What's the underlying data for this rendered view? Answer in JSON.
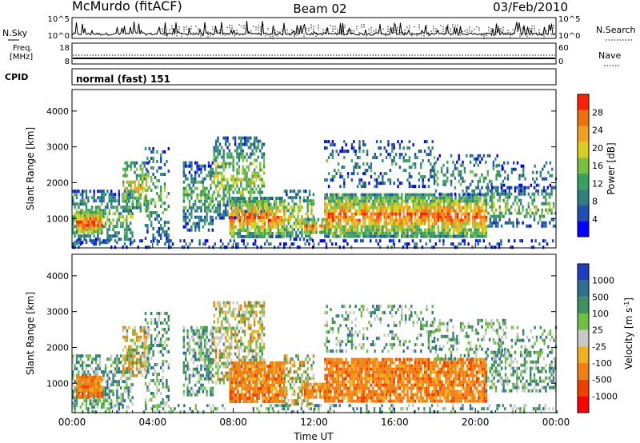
{
  "header": {
    "station": "McMurdo (fitACF)",
    "beam": "Beam 02",
    "date": "03/Feb/2010"
  },
  "noise_panel": {
    "left_label": "N.Sky",
    "right_label": "N.Search",
    "left_ticks": [
      "10^5",
      "10^0"
    ],
    "right_ticks": [
      "10^5",
      "10^0"
    ]
  },
  "freq_panel": {
    "left_label_1": "Freq.",
    "left_label_2": "[MHz]",
    "right_label": "Nave",
    "left_ticks": [
      "18",
      "8"
    ],
    "right_ticks": [
      "60",
      "0"
    ]
  },
  "cpid": {
    "label": "CPID",
    "value": "normal (fast) 151"
  },
  "chart_data": [
    {
      "type": "heatmap",
      "name": "power",
      "ylabel": "Slant Range [km]",
      "xlabel": "",
      "ylim": [
        180,
        4600
      ],
      "y_ticks": [
        "1000",
        "2000",
        "3000",
        "4000"
      ],
      "y_tick_values": [
        1000,
        2000,
        3000,
        4000
      ],
      "colorbar": {
        "label": "Power [dB]",
        "range": [
          0,
          32
        ],
        "tick_labels": [
          "4",
          "8",
          "12",
          "16",
          "20",
          "24",
          "28"
        ],
        "tick_values": [
          4,
          8,
          12,
          16,
          20,
          24,
          28
        ],
        "colors": [
          "#0000ff",
          "#1f4fb0",
          "#2f7f7f",
          "#3aa060",
          "#77c040",
          "#d8d020",
          "#f0a020",
          "#f07010",
          "#ff2000"
        ]
      }
    },
    {
      "type": "heatmap",
      "name": "velocity",
      "ylabel": "Slant Range [km]",
      "xlabel": "Time UT",
      "ylim": [
        180,
        4600
      ],
      "y_ticks": [
        "1000",
        "2000",
        "3000",
        "4000"
      ],
      "y_tick_values": [
        1000,
        2000,
        3000,
        4000
      ],
      "x_ticks": [
        "00:00",
        "04:00",
        "08:00",
        "12:00",
        "16:00",
        "20:00",
        "00:00"
      ],
      "x_tick_hours": [
        0,
        4,
        8,
        12,
        16,
        20,
        24
      ],
      "colorbar": {
        "label": "Velocity [m s",
        "label_sup": "-1",
        "label_end": "]",
        "tick_labels": [
          "1000",
          "500",
          "100",
          "25",
          "-25",
          "-100",
          "-500",
          "-1000"
        ],
        "colors": [
          "#1f3fc0",
          "#2f6f8f",
          "#3f8f5f",
          "#6fc040",
          "#c8c8c8",
          "#f0b020",
          "#f08010",
          "#f04000",
          "#ff0000"
        ]
      }
    }
  ]
}
